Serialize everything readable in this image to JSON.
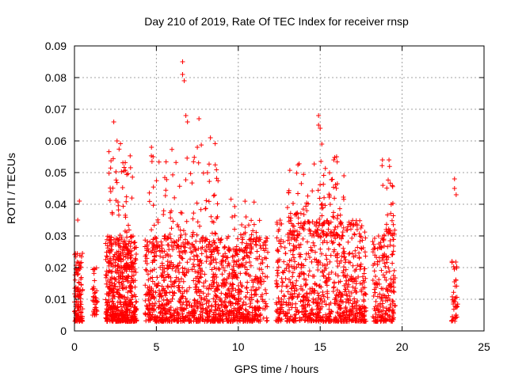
{
  "chart_data": {
    "type": "scatter",
    "title": "Day 210 of 2019, Rate Of TEC Index for receiver rnsp",
    "xlabel": "GPS time / hours",
    "ylabel": "ROTI / TECUs",
    "xlim": [
      0,
      25
    ],
    "ylim": [
      0,
      0.09
    ],
    "xticks": [
      "0",
      "5",
      "10",
      "15",
      "20",
      "25"
    ],
    "yticks": [
      "0",
      "0.01",
      "0.02",
      "0.03",
      "0.04",
      "0.05",
      "0.06",
      "0.07",
      "0.08",
      "0.09"
    ],
    "grid": true,
    "marker": "+",
    "color": "#ff0000",
    "clusters": [
      {
        "x": [
          0.0,
          0.5
        ],
        "y": [
          0.003,
          0.025
        ],
        "n": 120
      },
      {
        "x": [
          1.1,
          1.4
        ],
        "y": [
          0.005,
          0.02
        ],
        "n": 40
      },
      {
        "x": [
          1.9,
          3.8
        ],
        "y": [
          0.003,
          0.03
        ],
        "n": 500
      },
      {
        "x": [
          2.1,
          3.6
        ],
        "y": [
          0.02,
          0.06
        ],
        "n": 90
      },
      {
        "x": [
          4.3,
          8.8
        ],
        "y": [
          0.003,
          0.03
        ],
        "n": 700
      },
      {
        "x": [
          4.5,
          8.8
        ],
        "y": [
          0.025,
          0.06
        ],
        "n": 120
      },
      {
        "x": [
          8.8,
          11.8
        ],
        "y": [
          0.003,
          0.03
        ],
        "n": 450
      },
      {
        "x": [
          9.5,
          11.5
        ],
        "y": [
          0.025,
          0.043
        ],
        "n": 40
      },
      {
        "x": [
          12.3,
          17.8
        ],
        "y": [
          0.003,
          0.035
        ],
        "n": 800
      },
      {
        "x": [
          13.0,
          16.5
        ],
        "y": [
          0.03,
          0.055
        ],
        "n": 120
      },
      {
        "x": [
          18.2,
          19.6
        ],
        "y": [
          0.003,
          0.03
        ],
        "n": 200
      },
      {
        "x": [
          18.6,
          19.6
        ],
        "y": [
          0.03,
          0.055
        ],
        "n": 30
      },
      {
        "x": [
          23.0,
          23.4
        ],
        "y": [
          0.003,
          0.022
        ],
        "n": 40
      }
    ],
    "outliers": [
      {
        "x": 6.6,
        "y": 0.085
      },
      {
        "x": 6.6,
        "y": 0.081
      },
      {
        "x": 6.7,
        "y": 0.079
      },
      {
        "x": 6.8,
        "y": 0.068
      },
      {
        "x": 6.9,
        "y": 0.066
      },
      {
        "x": 7.6,
        "y": 0.067
      },
      {
        "x": 7.5,
        "y": 0.058
      },
      {
        "x": 8.3,
        "y": 0.061
      },
      {
        "x": 2.4,
        "y": 0.066
      },
      {
        "x": 2.6,
        "y": 0.06
      },
      {
        "x": 14.9,
        "y": 0.068
      },
      {
        "x": 14.9,
        "y": 0.065
      },
      {
        "x": 15.0,
        "y": 0.064
      },
      {
        "x": 15.1,
        "y": 0.059
      },
      {
        "x": 23.2,
        "y": 0.048
      },
      {
        "x": 23.2,
        "y": 0.045
      },
      {
        "x": 23.3,
        "y": 0.043
      },
      {
        "x": 4.7,
        "y": 0.058
      },
      {
        "x": 4.8,
        "y": 0.055
      },
      {
        "x": 18.8,
        "y": 0.054
      },
      {
        "x": 19.2,
        "y": 0.054
      },
      {
        "x": 16.0,
        "y": 0.055
      },
      {
        "x": 0.3,
        "y": 0.041
      },
      {
        "x": 0.2,
        "y": 0.035
      }
    ]
  }
}
